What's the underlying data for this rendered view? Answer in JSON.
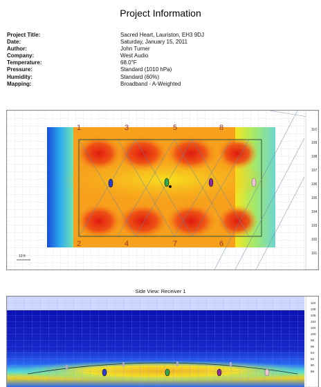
{
  "page_title": "Project Information",
  "info": [
    {
      "label": "Project Title:",
      "value": "Sacred Heart, Lauriston, EH3 9DJ"
    },
    {
      "label": "Date:",
      "value": "Saturday, January 15, 2011"
    },
    {
      "label": "Author:",
      "value": "John Turner"
    },
    {
      "label": "Company:",
      "value": "West Audio"
    },
    {
      "label": "Temperature:",
      "value": "68.0°F"
    },
    {
      "label": "Pressure:",
      "value": "Standard (1010 hPa)"
    },
    {
      "label": "Humidity:",
      "value": "Standard (60%)"
    },
    {
      "label": "Mapping:",
      "value": "Broadband - A-Weighted"
    }
  ],
  "plan_view": {
    "speaker_labels": [
      "1",
      "3",
      "5",
      "8",
      "2",
      "4",
      "7",
      "6"
    ],
    "scale_values": [
      "110",
      "109",
      "108",
      "107",
      "106",
      "105",
      "104",
      "103",
      "102",
      "101"
    ],
    "scale_bar_label": "10 ft"
  },
  "side_view": {
    "title": "Side View: Receiver 1",
    "scale_values": [
      "110",
      "108",
      "106",
      "104",
      "102",
      "100",
      "98",
      "96",
      "94",
      "92",
      "90",
      "88"
    ]
  },
  "colors": {
    "hot": "#e11d0f",
    "warm": "#f7a21a",
    "yellow": "#f6e61e",
    "cool": "#3c78ff",
    "cold": "#0b14b5"
  }
}
